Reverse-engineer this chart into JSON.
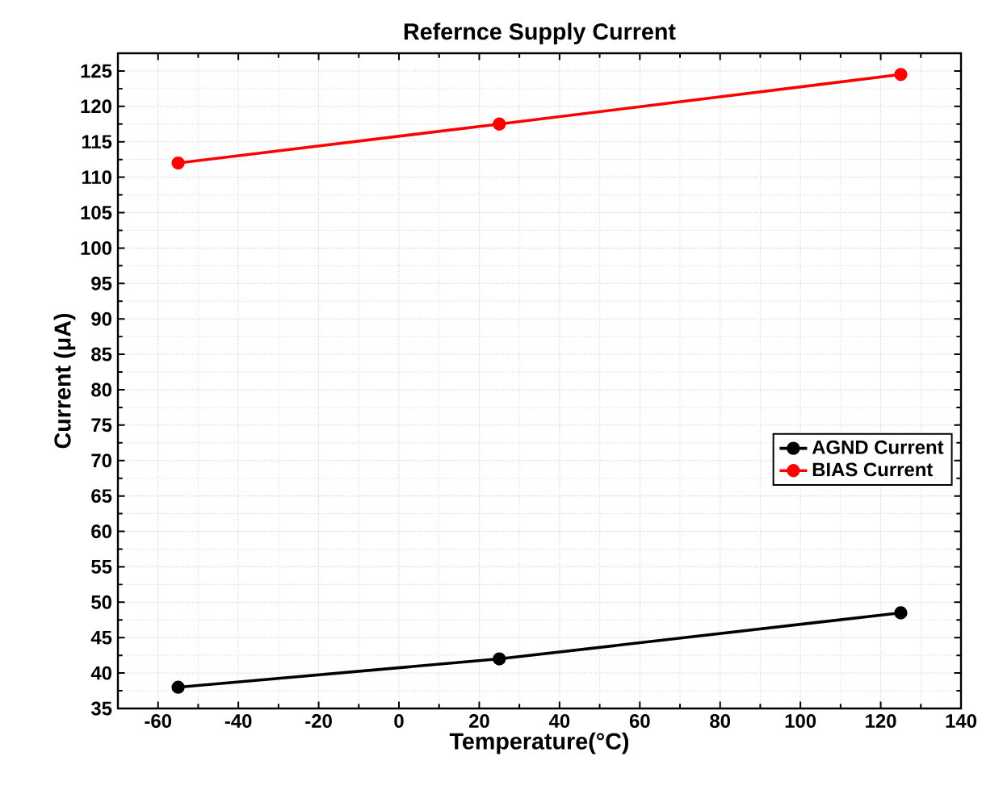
{
  "chart_data": {
    "type": "line",
    "title": "Refernce Supply Current",
    "xlabel": "Temperature(°C)",
    "ylabel": "Current (μA)",
    "x": [
      -55,
      25,
      125
    ],
    "series": [
      {
        "name": "AGND Current",
        "color": "#000000",
        "values": [
          38,
          42,
          48.5
        ]
      },
      {
        "name": "BIAS Current",
        "color": "#ff0000",
        "values": [
          112,
          117.5,
          124.5
        ]
      }
    ],
    "xlim": [
      -70,
      140
    ],
    "ylim": [
      35,
      127.5
    ],
    "xticks": [
      -60,
      -40,
      -20,
      0,
      20,
      40,
      60,
      80,
      100,
      120,
      140
    ],
    "yticks": [
      35,
      40,
      45,
      50,
      55,
      60,
      65,
      70,
      75,
      80,
      85,
      90,
      95,
      100,
      105,
      110,
      115,
      120,
      125
    ],
    "grid": true,
    "legend": "right",
    "marker": "circle",
    "line_style": "solid"
  }
}
